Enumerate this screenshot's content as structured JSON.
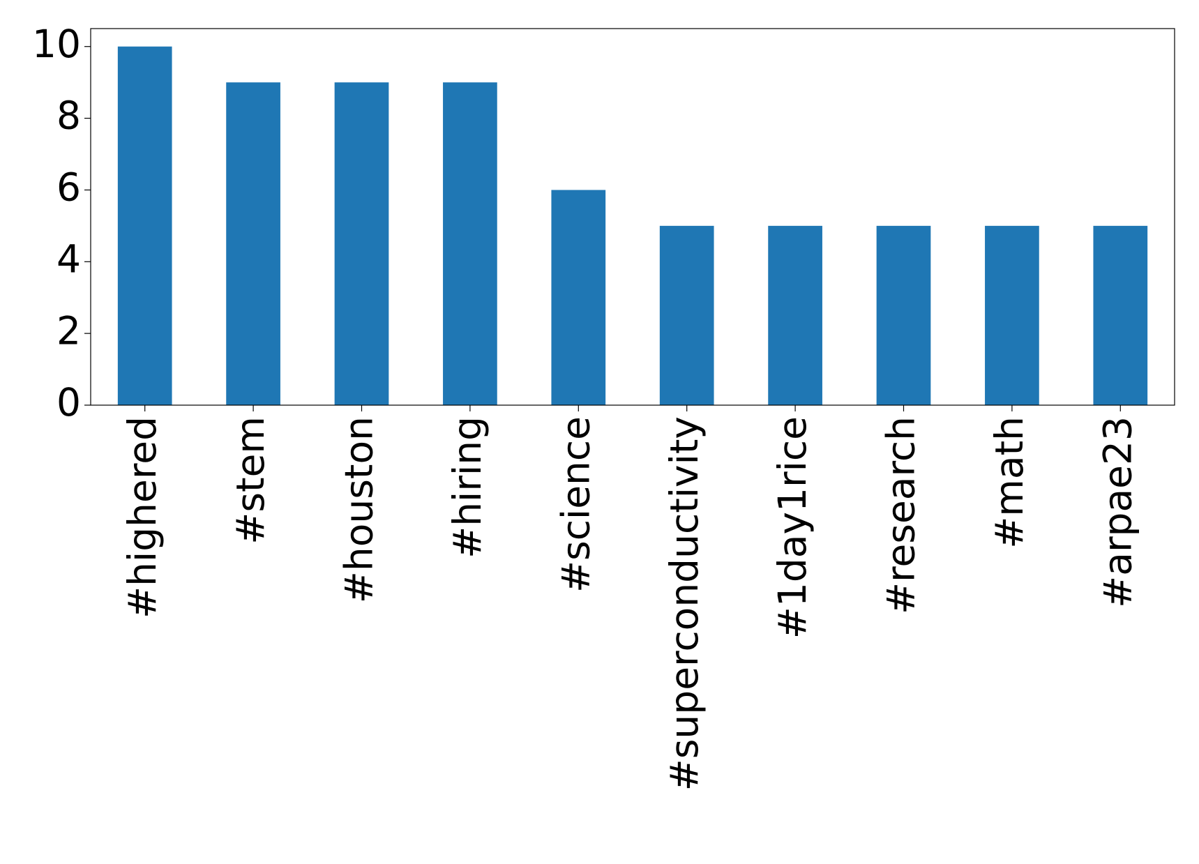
{
  "chart_data": {
    "type": "bar",
    "categories": [
      "#highered",
      "#stem",
      "#houston",
      "#hiring",
      "#science",
      "#superconductivity",
      "#1day1rice",
      "#research",
      "#math",
      "#arpae23"
    ],
    "values": [
      10,
      9,
      9,
      9,
      6,
      5,
      5,
      5,
      5,
      5
    ],
    "color": "#1f77b4",
    "ylim": [
      0,
      10.5
    ],
    "yticks": [
      0,
      2,
      4,
      6,
      8,
      10
    ],
    "grid": false
  }
}
